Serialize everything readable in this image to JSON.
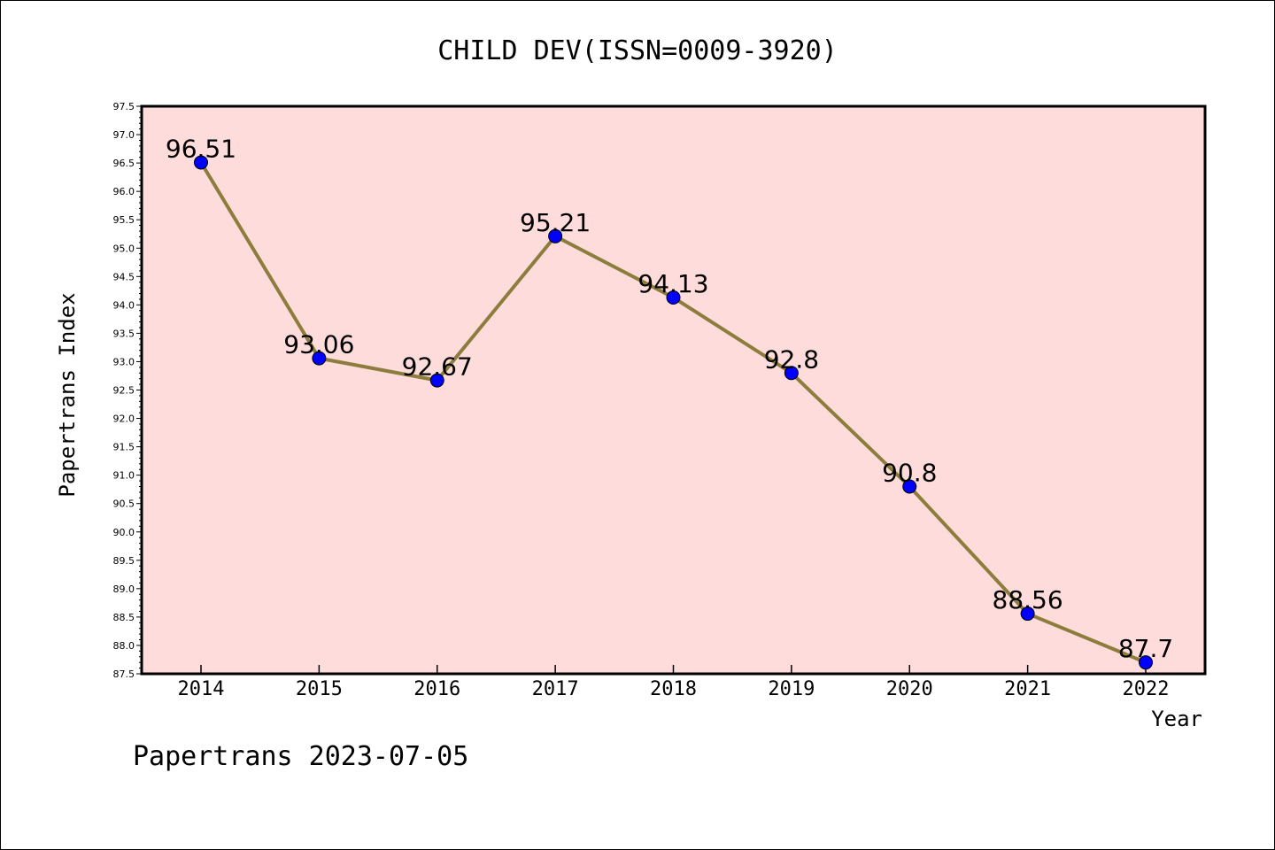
{
  "chart_data": {
    "type": "line",
    "title": "CHILD DEV(ISSN=0009-3920)",
    "xlabel": "Year",
    "ylabel": "Papertrans Index",
    "x": [
      "2014",
      "2015",
      "2016",
      "2017",
      "2018",
      "2019",
      "2020",
      "2021",
      "2022"
    ],
    "series": [
      {
        "values": [
          96.51,
          93.06,
          92.67,
          95.21,
          94.13,
          92.8,
          90.8,
          88.56,
          87.7
        ],
        "labels": [
          "96.51",
          "93.06",
          "92.67",
          "95.21",
          "94.13",
          "92.8",
          "90.8",
          "88.56",
          "87.7"
        ]
      }
    ],
    "ylim": [
      87.5,
      97.5
    ],
    "yticks": [
      "87.5",
      "88.0",
      "88.5",
      "89.0",
      "89.5",
      "90.0",
      "90.5",
      "91.0",
      "91.5",
      "92.0",
      "92.5",
      "93.0",
      "93.5",
      "94.0",
      "94.5",
      "95.0",
      "95.5",
      "96.0",
      "96.5",
      "97.0",
      "97.5"
    ],
    "grid": false,
    "colors": {
      "plot_background": "#ffdcdc",
      "line": "#8c7d3c",
      "marker": "#0000ff"
    }
  },
  "footer": "Papertrans 2023-07-05"
}
